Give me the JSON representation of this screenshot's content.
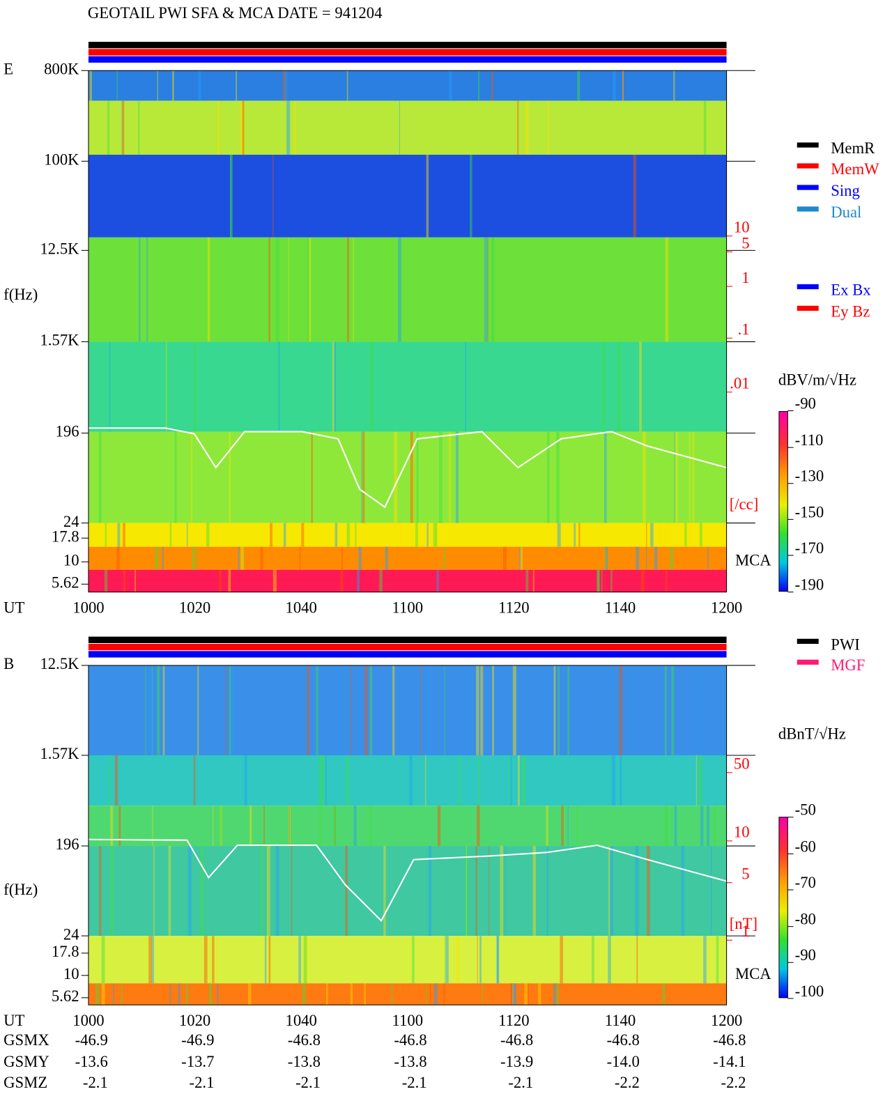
{
  "title": "GEOTAIL  PWI SFA & MCA   DATE = 941204",
  "panels": [
    {
      "label": "E",
      "y_label": "f(Hz)",
      "x_label": "UT",
      "yticks": [
        "800K",
        "100K",
        "12.5K",
        "1.57K",
        "196",
        "24",
        "17.8",
        "10",
        "5.62"
      ],
      "xticks": [
        "1000",
        "1020",
        "1040",
        "1100",
        "1120",
        "1140",
        "1200"
      ],
      "density_ticks": [
        "10",
        "5",
        "1",
        ".1",
        ".01"
      ],
      "density_unit": "[/cc]",
      "mca_label": "MCA",
      "legend": [
        {
          "name": "MemR",
          "color": "#000000"
        },
        {
          "name": "MemW",
          "color": "#ff0000"
        },
        {
          "name": "Sing",
          "color": "#0000ff"
        },
        {
          "name": "Dual",
          "color": "#2288cc"
        }
      ],
      "legend2": [
        {
          "name": "Ex Bx",
          "color": "#0000ff"
        },
        {
          "name": "Ey Bz",
          "color": "#ff0000"
        }
      ],
      "colorbar_title": "dBV/m/√Hz",
      "colorbar_ticks": [
        "-90",
        "-110",
        "-130",
        "-150",
        "-170",
        "-190"
      ]
    },
    {
      "label": "B",
      "y_label": "f(Hz)",
      "x_label": "UT",
      "yticks": [
        "12.5K",
        "1.57K",
        "196",
        "24",
        "17.8",
        "10",
        "5.62"
      ],
      "xticks": [
        "1000",
        "1020",
        "1040",
        "1100",
        "1120",
        "1140",
        "1200"
      ],
      "density_ticks": [
        "50",
        "10",
        "5",
        "1"
      ],
      "density_unit": "[nT]",
      "mca_label": "MCA",
      "legend": [
        {
          "name": "PWI",
          "color": "#000000"
        },
        {
          "name": "MGF",
          "color": "#ff1a75"
        }
      ],
      "colorbar_title": "dBnT/√Hz",
      "colorbar_ticks": [
        "-50",
        "-60",
        "-70",
        "-80",
        "-90",
        "-100"
      ]
    }
  ],
  "orbit": [
    {
      "label": "GSMX",
      "values": [
        "-46.9",
        "-46.9",
        "-46.8",
        "-46.8",
        "-46.8",
        "-46.8",
        "-46.8"
      ]
    },
    {
      "label": "GSMY",
      "values": [
        "-13.6",
        "-13.7",
        "-13.8",
        "-13.8",
        "-13.9",
        "-14.0",
        "-14.1"
      ]
    },
    {
      "label": "GSMZ",
      "values": [
        "-2.1",
        "-2.1",
        "-2.1",
        "-2.1",
        "-2.1",
        "-2.2",
        "-2.2"
      ]
    }
  ]
}
